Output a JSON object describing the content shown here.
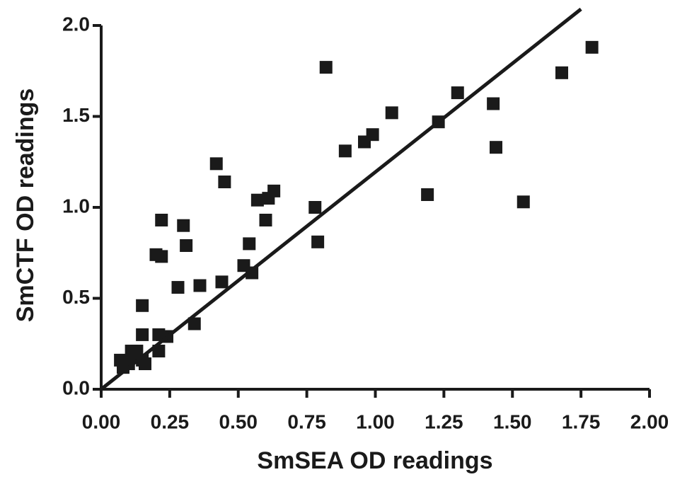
{
  "chart_data": {
    "type": "scatter",
    "xlabel": "SmSEA OD readings",
    "ylabel": "SmCTF OD readings",
    "color": "#1a1a1a",
    "xlim": [
      0,
      2.0
    ],
    "ylim": [
      0,
      2.0
    ],
    "xticks": [
      {
        "value": 0,
        "label": "0.00"
      },
      {
        "value": 0.25,
        "label": "0.25"
      },
      {
        "value": 0.5,
        "label": "0.50"
      },
      {
        "value": 0.75,
        "label": "0.75"
      },
      {
        "value": 1,
        "label": "1.00"
      },
      {
        "value": 1.25,
        "label": "1.25"
      },
      {
        "value": 1.5,
        "label": "1.50"
      },
      {
        "value": 1.75,
        "label": "1.75"
      },
      {
        "value": 2,
        "label": "2.00"
      }
    ],
    "yticks": [
      {
        "value": 0,
        "label": "0.0"
      },
      0.5,
      {
        "value": 1,
        "label": "1.0"
      },
      1.5,
      {
        "value": 2,
        "label": "2.0"
      }
    ],
    "x": [
      1.79,
      1.68,
      0.82,
      1.3,
      1.43,
      1.06,
      1.23,
      0.96,
      0.99,
      0.89,
      1.44,
      0.42,
      0.45,
      0.63,
      0.61,
      0.57,
      1.19,
      1.54,
      0.78,
      0.6,
      0.22,
      0.3,
      0.31,
      0.79,
      0.54,
      0.2,
      0.22,
      0.52,
      0.55,
      0.44,
      0.36,
      0.28,
      0.15,
      0.34,
      0.15,
      0.24,
      0.21,
      0.21,
      0.11,
      0.13,
      0.07,
      0.1,
      0.15,
      0.16,
      0.08,
      0.12
    ],
    "y": [
      1.88,
      1.74,
      1.77,
      1.63,
      1.57,
      1.52,
      1.47,
      1.36,
      1.4,
      1.31,
      1.33,
      1.24,
      1.14,
      1.09,
      1.05,
      1.04,
      1.07,
      1.03,
      1.0,
      0.93,
      0.93,
      0.9,
      0.79,
      0.81,
      0.8,
      0.74,
      0.73,
      0.68,
      0.64,
      0.59,
      0.57,
      0.56,
      0.46,
      0.36,
      0.3,
      0.29,
      0.3,
      0.21,
      0.21,
      0.21,
      0.16,
      0.14,
      0.16,
      0.14,
      0.12,
      0.18
    ],
    "fit_line": {
      "x": [
        0,
        1.75
      ],
      "y": [
        0,
        2.09
      ]
    }
  }
}
